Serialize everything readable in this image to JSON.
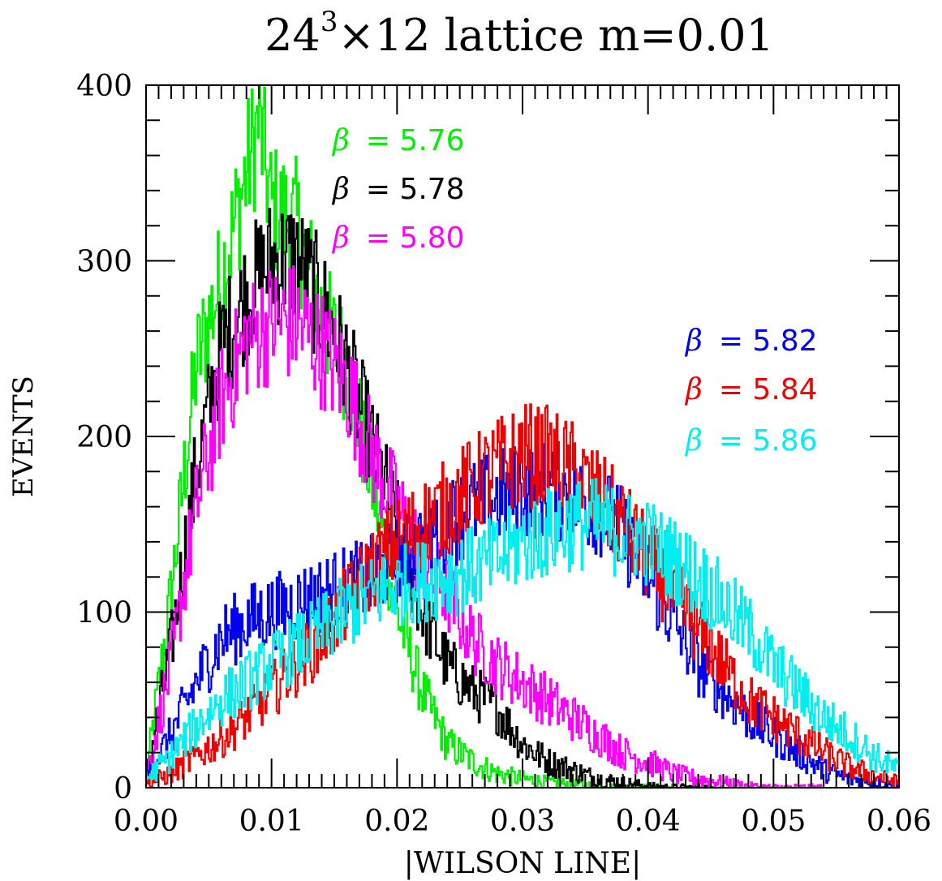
{
  "chart_data": {
    "type": "line",
    "title": {
      "base": "24",
      "superscript": "3",
      "rest": "×12 lattice m=0.01"
    },
    "xlabel": "|WILSON LINE|",
    "ylabel": "EVENTS",
    "xlim": [
      0.0,
      0.06
    ],
    "ylim": [
      0,
      400
    ],
    "xticks": [
      0.0,
      0.01,
      0.02,
      0.03,
      0.04,
      0.05,
      0.06
    ],
    "xtick_labels": [
      "0.00",
      "0.01",
      "0.02",
      "0.03",
      "0.04",
      "0.05",
      "0.06"
    ],
    "yticks": [
      0,
      100,
      200,
      300,
      400
    ],
    "ytick_labels": [
      "0",
      "100",
      "200",
      "300",
      "400"
    ],
    "grid": false,
    "legend_placement": "inside",
    "series": [
      {
        "name": "β = 5.76",
        "beta_symbol": "β",
        "value_text": "= 5.76",
        "color": "#00ee00",
        "x": [
          0.0,
          0.002,
          0.004,
          0.006,
          0.008,
          0.009,
          0.01,
          0.012,
          0.014,
          0.016,
          0.018,
          0.02,
          0.022,
          0.024,
          0.026,
          0.028,
          0.03,
          0.032,
          0.034,
          0.036,
          0.038
        ],
        "y": [
          5,
          110,
          240,
          290,
          350,
          380,
          330,
          320,
          270,
          240,
          175,
          100,
          55,
          25,
          15,
          8,
          5,
          3,
          2,
          1,
          0
        ]
      },
      {
        "name": "β = 5.78",
        "beta_symbol": "β",
        "value_text": "= 5.78",
        "color": "#000000",
        "x": [
          0.0,
          0.002,
          0.004,
          0.006,
          0.008,
          0.01,
          0.012,
          0.014,
          0.016,
          0.018,
          0.02,
          0.022,
          0.024,
          0.026,
          0.028,
          0.03,
          0.032,
          0.034,
          0.036,
          0.038,
          0.04,
          0.042
        ],
        "y": [
          5,
          80,
          180,
          250,
          280,
          300,
          300,
          275,
          240,
          195,
          150,
          100,
          70,
          55,
          45,
          25,
          15,
          10,
          5,
          3,
          1,
          0
        ]
      },
      {
        "name": "β = 5.80",
        "beta_symbol": "β",
        "value_text": "= 5.80",
        "color": "#ff00ff",
        "x": [
          0.0,
          0.002,
          0.004,
          0.006,
          0.008,
          0.01,
          0.012,
          0.014,
          0.016,
          0.018,
          0.02,
          0.022,
          0.024,
          0.026,
          0.028,
          0.03,
          0.032,
          0.034,
          0.036,
          0.038,
          0.04,
          0.042,
          0.044,
          0.046,
          0.048,
          0.05
        ],
        "y": [
          5,
          70,
          160,
          220,
          255,
          265,
          265,
          250,
          230,
          190,
          160,
          130,
          110,
          85,
          70,
          60,
          50,
          40,
          30,
          20,
          15,
          8,
          5,
          3,
          1,
          0
        ]
      },
      {
        "name": "β = 5.82",
        "beta_symbol": "β",
        "value_text": "= 5.82",
        "color": "#0000ee",
        "x": [
          0.0,
          0.002,
          0.004,
          0.006,
          0.008,
          0.01,
          0.012,
          0.014,
          0.016,
          0.018,
          0.02,
          0.022,
          0.024,
          0.026,
          0.028,
          0.03,
          0.032,
          0.034,
          0.036,
          0.038,
          0.04,
          0.042,
          0.044,
          0.046,
          0.048,
          0.05,
          0.052,
          0.054,
          0.056,
          0.058,
          0.06
        ],
        "y": [
          5,
          30,
          60,
          85,
          95,
          100,
          105,
          110,
          115,
          120,
          130,
          140,
          150,
          160,
          165,
          170,
          170,
          165,
          160,
          145,
          120,
          95,
          70,
          55,
          40,
          30,
          20,
          10,
          5,
          3,
          1
        ]
      },
      {
        "name": "β = 5.84",
        "beta_symbol": "β",
        "value_text": "= 5.84",
        "color": "#ee0000",
        "x": [
          0.0,
          0.002,
          0.004,
          0.006,
          0.008,
          0.01,
          0.012,
          0.014,
          0.016,
          0.018,
          0.02,
          0.022,
          0.024,
          0.026,
          0.028,
          0.03,
          0.032,
          0.034,
          0.036,
          0.038,
          0.04,
          0.042,
          0.044,
          0.046,
          0.048,
          0.05,
          0.052,
          0.054,
          0.056,
          0.058,
          0.06
        ],
        "y": [
          2,
          8,
          18,
          28,
          40,
          55,
          70,
          85,
          105,
          125,
          140,
          150,
          160,
          172,
          182,
          190,
          188,
          180,
          165,
          150,
          130,
          110,
          90,
          70,
          50,
          40,
          30,
          20,
          12,
          7,
          3
        ]
      },
      {
        "name": "β = 5.86",
        "beta_symbol": "β",
        "value_text": "= 5.86",
        "color": "#00eeee",
        "x": [
          0.0,
          0.002,
          0.004,
          0.006,
          0.008,
          0.01,
          0.012,
          0.014,
          0.016,
          0.018,
          0.02,
          0.022,
          0.024,
          0.026,
          0.028,
          0.03,
          0.032,
          0.034,
          0.036,
          0.038,
          0.04,
          0.042,
          0.044,
          0.046,
          0.048,
          0.05,
          0.052,
          0.054,
          0.056,
          0.058,
          0.06
        ],
        "y": [
          5,
          18,
          35,
          50,
          60,
          70,
          80,
          90,
          100,
          110,
          115,
          118,
          120,
          125,
          130,
          140,
          145,
          150,
          150,
          145,
          140,
          130,
          120,
          105,
          90,
          70,
          55,
          40,
          30,
          18,
          10
        ]
      }
    ]
  }
}
